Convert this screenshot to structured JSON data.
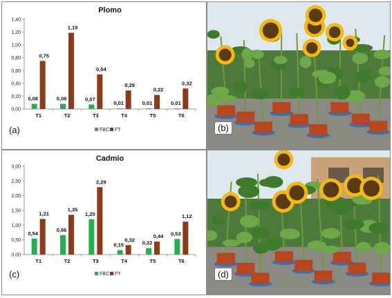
{
  "colors": {
    "fbc": "#22b14c",
    "ft": "#8b3a1a",
    "sky": "#dfe7ee",
    "foliage": "#3e7a2c",
    "foliage_light": "#6ea64a",
    "pot": "#b5461e",
    "petal": "#f2b90f",
    "disk": "#5a3a10",
    "ground": "#8a8a82"
  },
  "panels": {
    "a": {
      "label": "(a)"
    },
    "b": {
      "label": "(b)"
    },
    "c": {
      "label": "(c)"
    },
    "d": {
      "label": "(d)"
    }
  },
  "chart_data": [
    {
      "type": "bar",
      "title": "Plomo",
      "categories": [
        "T1",
        "T2",
        "T3",
        "T4",
        "T5",
        "T6"
      ],
      "series": [
        {
          "name": "FBC",
          "values": [
            0.08,
            0.08,
            0.07,
            0.01,
            0.01,
            0.01
          ],
          "labels": [
            "0,08",
            "0,08",
            "0,07",
            "0,01",
            "0,01",
            "0,01"
          ]
        },
        {
          "name": "FT",
          "values": [
            0.75,
            1.19,
            0.54,
            0.29,
            0.22,
            0.32
          ],
          "labels": [
            "0,75",
            "1,19",
            "0,54",
            "0,29",
            "0,22",
            "0,32"
          ]
        }
      ],
      "yticks": [
        "0,00",
        "0,20",
        "0,40",
        "0,60",
        "0,80",
        "1,00",
        "1,20",
        "1,40"
      ],
      "ylim": [
        0,
        1.4
      ],
      "ystep": 0.2,
      "grid": false,
      "legend": "bottom-right"
    },
    {
      "type": "bar",
      "title": "Cadmio",
      "categories": [
        "T1",
        "T2",
        "T3",
        "T4",
        "T5",
        "T6"
      ],
      "series": [
        {
          "name": "FBC",
          "values": [
            0.54,
            0.66,
            1.2,
            0.15,
            0.22,
            0.53
          ],
          "labels": [
            "0,54",
            "0,66",
            "1,20",
            "0,15",
            "0,22",
            "0,53"
          ]
        },
        {
          "name": "FT",
          "values": [
            1.21,
            1.35,
            2.29,
            0.32,
            0.44,
            1.12
          ],
          "labels": [
            "1,21",
            "1,35",
            "2,29",
            "0,32",
            "0,44",
            "1,12"
          ]
        }
      ],
      "yticks": [
        "0,00",
        "0,50",
        "1,00",
        "1,50",
        "2,00",
        "2,50",
        "3,00"
      ],
      "ylim": [
        0,
        3.0
      ],
      "ystep": 0.5,
      "grid": false,
      "legend": "bottom-right"
    }
  ]
}
